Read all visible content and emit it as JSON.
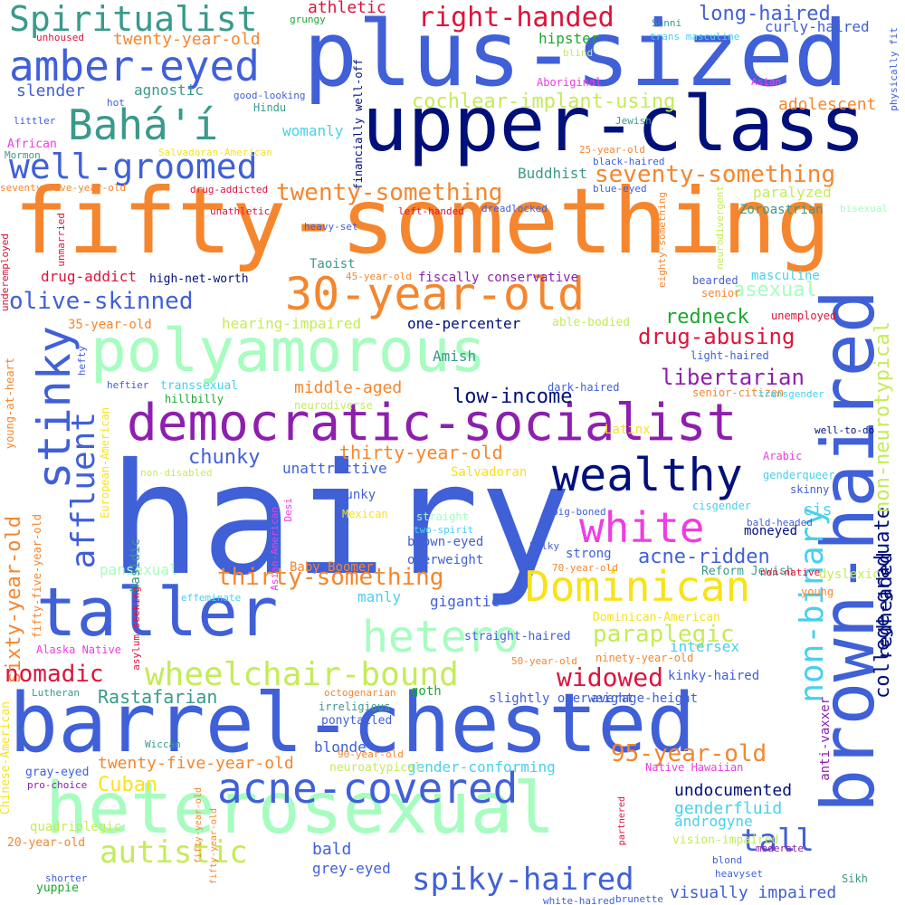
{
  "palette": {
    "royal_blue": "#4060d8",
    "navy": "#00107a",
    "orange": "#f5862e",
    "mint": "#a6fdbf",
    "purple": "#8e1fae",
    "magenta": "#ef3de3",
    "yellow": "#f8e21a",
    "lime": "#c4ec58",
    "crimson": "#dc143c",
    "teal": "#3a9a8a",
    "sky": "#48d0ee",
    "green": "#1ea632"
  },
  "words": [
    {
      "text": "hairy",
      "color": "royal_blue"
    },
    {
      "text": "plus-sized",
      "color": "royal_blue"
    },
    {
      "text": "fifty-something",
      "color": "orange"
    },
    {
      "text": "upper-class",
      "color": "navy"
    },
    {
      "text": "barrel-chested",
      "color": "royal_blue"
    },
    {
      "text": "heterosexual",
      "color": "mint"
    },
    {
      "text": "brown-haired",
      "color": "royal_blue"
    },
    {
      "text": "polyamorous",
      "color": "mint"
    },
    {
      "text": "democratic-socialist",
      "color": "purple"
    },
    {
      "text": "taller",
      "color": "royal_blue"
    },
    {
      "text": "wealthy",
      "color": "navy"
    },
    {
      "text": "Spiritualist",
      "color": "teal"
    },
    {
      "text": "amber-eyed",
      "color": "royal_blue"
    },
    {
      "text": "Bahá'í",
      "color": "teal"
    },
    {
      "text": "well-groomed",
      "color": "royal_blue"
    },
    {
      "text": "30-year-old",
      "color": "orange"
    },
    {
      "text": "stinky",
      "color": "royal_blue"
    },
    {
      "text": "white",
      "color": "magenta"
    },
    {
      "text": "Dominican",
      "color": "yellow"
    },
    {
      "text": "hetero",
      "color": "mint"
    },
    {
      "text": "acne-covered",
      "color": "royal_blue"
    },
    {
      "text": "non-binary",
      "color": "sky"
    },
    {
      "text": "affluent",
      "color": "royal_blue"
    },
    {
      "text": "wheelchair-bound",
      "color": "lime"
    },
    {
      "text": "autistic",
      "color": "lime"
    },
    {
      "text": "spiky-haired",
      "color": "royal_blue"
    },
    {
      "text": "tall",
      "color": "royal_blue"
    },
    {
      "text": "right-handed",
      "color": "crimson"
    },
    {
      "text": "long-haired",
      "color": "royal_blue"
    },
    {
      "text": "twenty-something",
      "color": "orange"
    },
    {
      "text": "seventy-something",
      "color": "orange"
    },
    {
      "text": "olive-skinned",
      "color": "royal_blue"
    },
    {
      "text": "college-graduate",
      "color": "navy"
    },
    {
      "text": "redheaded",
      "color": "navy"
    },
    {
      "text": "sixty-year-old",
      "color": "orange"
    },
    {
      "text": "widowed",
      "color": "crimson"
    },
    {
      "text": "95-year-old",
      "color": "orange"
    },
    {
      "text": "paraplegic",
      "color": "lime"
    },
    {
      "text": "nomadic",
      "color": "crimson"
    },
    {
      "text": "thirty-something",
      "color": "orange"
    },
    {
      "text": "drug-abusing",
      "color": "crimson"
    },
    {
      "text": "libertarian",
      "color": "purple"
    },
    {
      "text": "redneck",
      "color": "green"
    },
    {
      "text": "asexual",
      "color": "mint"
    },
    {
      "text": "non-neurotypical",
      "color": "lime"
    },
    {
      "text": "low-income",
      "color": "navy"
    },
    {
      "text": "chunky",
      "color": "royal_blue"
    },
    {
      "text": "acne-ridden",
      "color": "royal_blue"
    },
    {
      "text": "Cuban",
      "color": "yellow"
    },
    {
      "text": "Rastafarian",
      "color": "teal"
    },
    {
      "text": "cochlear-implant-using",
      "color": "lime"
    },
    {
      "text": "adolescent",
      "color": "orange"
    },
    {
      "text": "thirty-year-old",
      "color": "orange"
    },
    {
      "text": "twenty-five-year-old",
      "color": "orange"
    },
    {
      "text": "middle-aged",
      "color": "orange"
    },
    {
      "text": "undocumented",
      "color": "navy"
    },
    {
      "text": "genderfluid",
      "color": "sky"
    },
    {
      "text": "bald",
      "color": "royal_blue"
    },
    {
      "text": "grey-eyed",
      "color": "royal_blue"
    },
    {
      "text": "visually impaired",
      "color": "royal_blue"
    },
    {
      "text": "cis",
      "color": "sky"
    },
    {
      "text": "Buddhist",
      "color": "teal"
    },
    {
      "text": "paralyzed",
      "color": "lime"
    },
    {
      "text": "Zoroastrian",
      "color": "teal"
    },
    {
      "text": "drug-addict",
      "color": "crimson"
    },
    {
      "text": "hearing-impaired",
      "color": "lime"
    },
    {
      "text": "one-percenter",
      "color": "navy"
    },
    {
      "text": "athletic",
      "color": "crimson"
    },
    {
      "text": "slender",
      "color": "royal_blue"
    },
    {
      "text": "agnostic",
      "color": "teal"
    },
    {
      "text": "hipster",
      "color": "green"
    },
    {
      "text": "curly-haired",
      "color": "royal_blue"
    },
    {
      "text": "twenty-year-old",
      "color": "orange"
    },
    {
      "text": "womanly",
      "color": "sky"
    },
    {
      "text": "35-year-old",
      "color": "orange"
    },
    {
      "text": "Amish",
      "color": "teal"
    },
    {
      "text": "unattractive",
      "color": "royal_blue"
    },
    {
      "text": "pansexual",
      "color": "mint"
    },
    {
      "text": "manly",
      "color": "sky"
    },
    {
      "text": "gigantic",
      "color": "royal_blue"
    },
    {
      "text": "senior",
      "color": "orange"
    },
    {
      "text": "bearded",
      "color": "royal_blue"
    },
    {
      "text": "masculine",
      "color": "sky"
    },
    {
      "text": "goth",
      "color": "green"
    },
    {
      "text": "blonde",
      "color": "royal_blue"
    },
    {
      "text": "gender-conforming",
      "color": "sky"
    },
    {
      "text": "anti-vaxxer",
      "color": "purple"
    },
    {
      "text": "androgyne",
      "color": "sky"
    },
    {
      "text": "intersex",
      "color": "sky"
    },
    {
      "text": "kinky-haired",
      "color": "royal_blue"
    },
    {
      "text": "Latinx",
      "color": "yellow"
    },
    {
      "text": "Salvadoran",
      "color": "yellow"
    },
    {
      "text": "hunky",
      "color": "royal_blue"
    },
    {
      "text": "brown-eyed",
      "color": "royal_blue"
    },
    {
      "text": "overweight",
      "color": "royal_blue"
    },
    {
      "text": "strong",
      "color": "royal_blue"
    },
    {
      "text": "slightly overweight",
      "color": "royal_blue"
    },
    {
      "text": "average-height",
      "color": "royal_blue"
    },
    {
      "text": "moneyed",
      "color": "navy"
    },
    {
      "text": "skinny",
      "color": "royal_blue"
    },
    {
      "text": "dyslexic",
      "color": "lime"
    },
    {
      "text": "European-American",
      "color": "yellow"
    },
    {
      "text": "Asian-American",
      "color": "magenta"
    },
    {
      "text": "Desi",
      "color": "magenta"
    },
    {
      "text": "Mexican",
      "color": "yellow"
    },
    {
      "text": "Hasidic",
      "color": "teal"
    },
    {
      "text": "Baby Boomer",
      "color": "orange"
    },
    {
      "text": "Dominican-American",
      "color": "yellow"
    },
    {
      "text": "straight-haired",
      "color": "royal_blue"
    },
    {
      "text": "Reform Jewish",
      "color": "teal"
    },
    {
      "text": "young",
      "color": "orange"
    },
    {
      "text": "ninety-year-old",
      "color": "orange"
    },
    {
      "text": "neuroatypical",
      "color": "lime"
    },
    {
      "text": "Native Hawaiian",
      "color": "magenta"
    },
    {
      "text": "vision-impaired",
      "color": "lime"
    },
    {
      "text": "quadriplegic",
      "color": "lime"
    },
    {
      "text": "Chinese-American",
      "color": "yellow"
    },
    {
      "text": "gray-eyed",
      "color": "royal_blue"
    },
    {
      "text": "yuppie",
      "color": "green"
    },
    {
      "text": "20-year-old",
      "color": "orange"
    },
    {
      "text": "shorter",
      "color": "royal_blue"
    },
    {
      "text": "pro-choice",
      "color": "purple"
    },
    {
      "text": "Wiccan",
      "color": "teal"
    },
    {
      "text": "Lutheran",
      "color": "teal"
    },
    {
      "text": "irreligious",
      "color": "teal"
    },
    {
      "text": "ponytailed",
      "color": "royal_blue"
    },
    {
      "text": "octogenarian",
      "color": "orange"
    },
    {
      "text": "90-year-old",
      "color": "orange"
    },
    {
      "text": "50-year-old",
      "color": "orange"
    },
    {
      "text": "70-year-old",
      "color": "orange"
    },
    {
      "text": "Alaska Native",
      "color": "magenta"
    },
    {
      "text": "asylum-seeking",
      "color": "crimson"
    },
    {
      "text": "fifty-five-year-old",
      "color": "orange"
    },
    {
      "text": "fifty-year-old",
      "color": "orange"
    },
    {
      "text": "young-at-heart",
      "color": "orange"
    },
    {
      "text": "hefty",
      "color": "royal_blue"
    },
    {
      "text": "heftier",
      "color": "royal_blue"
    },
    {
      "text": "transsexual",
      "color": "sky"
    },
    {
      "text": "hillbilly",
      "color": "green"
    },
    {
      "text": "neurodiverse",
      "color": "lime"
    },
    {
      "text": "senior-citizen",
      "color": "orange"
    },
    {
      "text": "transgender",
      "color": "sky"
    },
    {
      "text": "non-disabled",
      "color": "lime"
    },
    {
      "text": "genderqueer",
      "color": "sky"
    },
    {
      "text": "Arabic",
      "color": "magenta"
    },
    {
      "text": "well-to-do",
      "color": "navy"
    },
    {
      "text": "dark-haired",
      "color": "royal_blue"
    },
    {
      "text": "light-haired",
      "color": "royal_blue"
    },
    {
      "text": "big-boned",
      "color": "royal_blue"
    },
    {
      "text": "cisgender",
      "color": "sky"
    },
    {
      "text": "two-spirit",
      "color": "sky"
    },
    {
      "text": "straight",
      "color": "mint"
    },
    {
      "text": "bulky",
      "color": "royal_blue"
    },
    {
      "text": "bald-headed",
      "color": "royal_blue"
    },
    {
      "text": "non-native",
      "color": "crimson"
    },
    {
      "text": "effeminate",
      "color": "sky"
    },
    {
      "text": "partnered",
      "color": "crimson"
    },
    {
      "text": "fifty-year-old",
      "color": "orange"
    },
    {
      "text": "blond",
      "color": "royal_blue"
    },
    {
      "text": "heavyset",
      "color": "royal_blue"
    },
    {
      "text": "moderate",
      "color": "purple"
    },
    {
      "text": "Sikh",
      "color": "teal"
    },
    {
      "text": "brunette",
      "color": "royal_blue"
    },
    {
      "text": "white-haired",
      "color": "royal_blue"
    },
    {
      "text": "high-net-worth",
      "color": "navy"
    },
    {
      "text": "fiscally conservative",
      "color": "purple"
    },
    {
      "text": "Taoist",
      "color": "teal"
    },
    {
      "text": "45-year-old",
      "color": "orange"
    },
    {
      "text": "able-bodied",
      "color": "lime"
    },
    {
      "text": "unemployed",
      "color": "crimson"
    },
    {
      "text": "underemployed",
      "color": "crimson"
    },
    {
      "text": "unmarried",
      "color": "crimson"
    },
    {
      "text": "unathletic",
      "color": "crimson"
    },
    {
      "text": "heavy-set",
      "color": "royal_blue"
    },
    {
      "text": "left-handed",
      "color": "crimson"
    },
    {
      "text": "dreadlocked",
      "color": "royal_blue"
    },
    {
      "text": "drug-addicted",
      "color": "crimson"
    },
    {
      "text": "seventy-five-year-old",
      "color": "orange"
    },
    {
      "text": "Salvadoran-American",
      "color": "yellow"
    },
    {
      "text": "Mormon",
      "color": "teal"
    },
    {
      "text": "African",
      "color": "magenta"
    },
    {
      "text": "littler",
      "color": "royal_blue"
    },
    {
      "text": "hot",
      "color": "royal_blue"
    },
    {
      "text": "good-looking",
      "color": "royal_blue"
    },
    {
      "text": "Hindu",
      "color": "teal"
    },
    {
      "text": "unhoused",
      "color": "crimson"
    },
    {
      "text": "grungy",
      "color": "green"
    },
    {
      "text": "financially well-off",
      "color": "navy"
    },
    {
      "text": "Aboriginal",
      "color": "magenta"
    },
    {
      "text": "blind",
      "color": "lime"
    },
    {
      "text": "trans masculine",
      "color": "sky"
    },
    {
      "text": "Sunni",
      "color": "teal"
    },
    {
      "text": "Asian",
      "color": "magenta"
    },
    {
      "text": "physically fit",
      "color": "royal_blue"
    },
    {
      "text": "Jewish",
      "color": "teal"
    },
    {
      "text": "25-year-old",
      "color": "orange"
    },
    {
      "text": "black-haired",
      "color": "royal_blue"
    },
    {
      "text": "blue-eyed",
      "color": "royal_blue"
    },
    {
      "text": "eighty-something",
      "color": "orange"
    },
    {
      "text": "neurodivergent",
      "color": "lime"
    },
    {
      "text": "bisexual",
      "color": "mint"
    }
  ]
}
